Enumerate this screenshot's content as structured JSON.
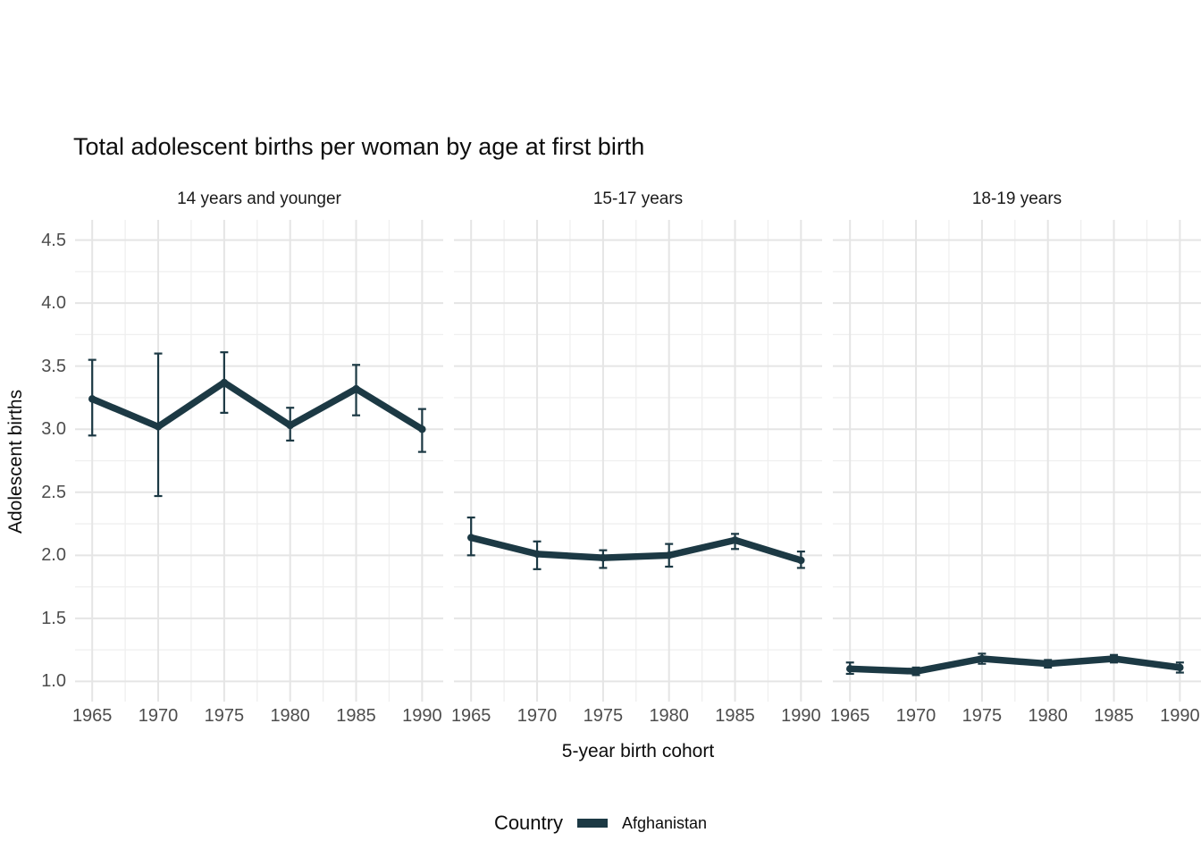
{
  "chart_data": {
    "type": "line",
    "title": "Total adolescent births per woman by age at first birth",
    "xlabel": "5-year birth cohort",
    "ylabel": "Adolescent births",
    "legend_title": "Country",
    "series_name": "Afghanistan",
    "series_color": "#1c3944",
    "grid": true,
    "legend_position": "bottom",
    "error_bars": true,
    "x": [
      1965,
      1970,
      1975,
      1980,
      1985,
      1990
    ],
    "y_ticks": [
      4.5,
      4.0,
      3.5,
      3.0,
      2.5,
      2.0,
      1.5,
      1.0
    ],
    "y_minor_ticks": [
      4.25,
      3.75,
      3.25,
      2.75,
      2.25,
      1.75,
      1.25
    ],
    "x_minor_ticks": [
      1967.5,
      1972.5,
      1977.5,
      1982.5,
      1987.5
    ],
    "x_range": [
      1963.7,
      1991.6
    ],
    "y_range": [
      0.84,
      4.66
    ],
    "facets": [
      {
        "label": "14 years and younger",
        "values": [
          3.24,
          3.02,
          3.37,
          3.03,
          3.32,
          3.0
        ],
        "ci_low": [
          2.95,
          2.47,
          3.13,
          2.91,
          3.11,
          2.82
        ],
        "ci_high": [
          3.55,
          3.6,
          3.61,
          3.17,
          3.51,
          3.16
        ]
      },
      {
        "label": "15-17 years",
        "values": [
          2.14,
          2.01,
          1.98,
          2.0,
          2.12,
          1.96
        ],
        "ci_low": [
          2.0,
          1.89,
          1.9,
          1.91,
          2.05,
          1.9
        ],
        "ci_high": [
          2.3,
          2.11,
          2.04,
          2.09,
          2.17,
          2.03
        ]
      },
      {
        "label": "18-19 years",
        "values": [
          1.1,
          1.08,
          1.18,
          1.14,
          1.18,
          1.11
        ],
        "ci_low": [
          1.06,
          1.05,
          1.14,
          1.11,
          1.15,
          1.07
        ],
        "ci_high": [
          1.15,
          1.11,
          1.22,
          1.17,
          1.21,
          1.15
        ]
      }
    ]
  },
  "colors": {
    "grid_major": "#e5e5e5",
    "grid_minor": "#efefef",
    "tick_text": "#4d4d4d",
    "text": "#0d0d0d",
    "background": "#ffffff"
  }
}
